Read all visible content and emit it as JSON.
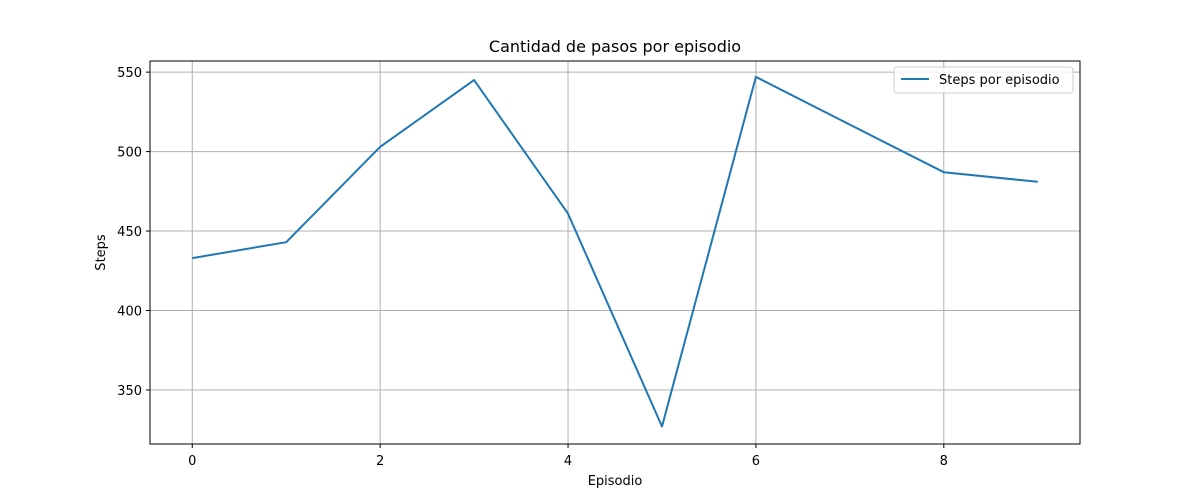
{
  "chart_data": {
    "type": "line",
    "title": "Cantidad de pasos por episodio",
    "xlabel": "Episodio",
    "ylabel": "Steps",
    "x": [
      0,
      1,
      2,
      3,
      4,
      5,
      6,
      7,
      8,
      9
    ],
    "series": [
      {
        "name": "Steps por episodio",
        "color": "#1f77b4",
        "values": [
          433,
          443,
          503,
          545,
          461,
          327,
          547,
          517,
          487,
          481
        ]
      }
    ],
    "xlim": [
      -0.45,
      9.45
    ],
    "ylim": [
      316,
      557
    ],
    "xticks": [
      0,
      2,
      4,
      6,
      8
    ],
    "yticks": [
      350,
      400,
      450,
      500,
      550
    ],
    "grid": true,
    "legend_position": "upper-right"
  }
}
